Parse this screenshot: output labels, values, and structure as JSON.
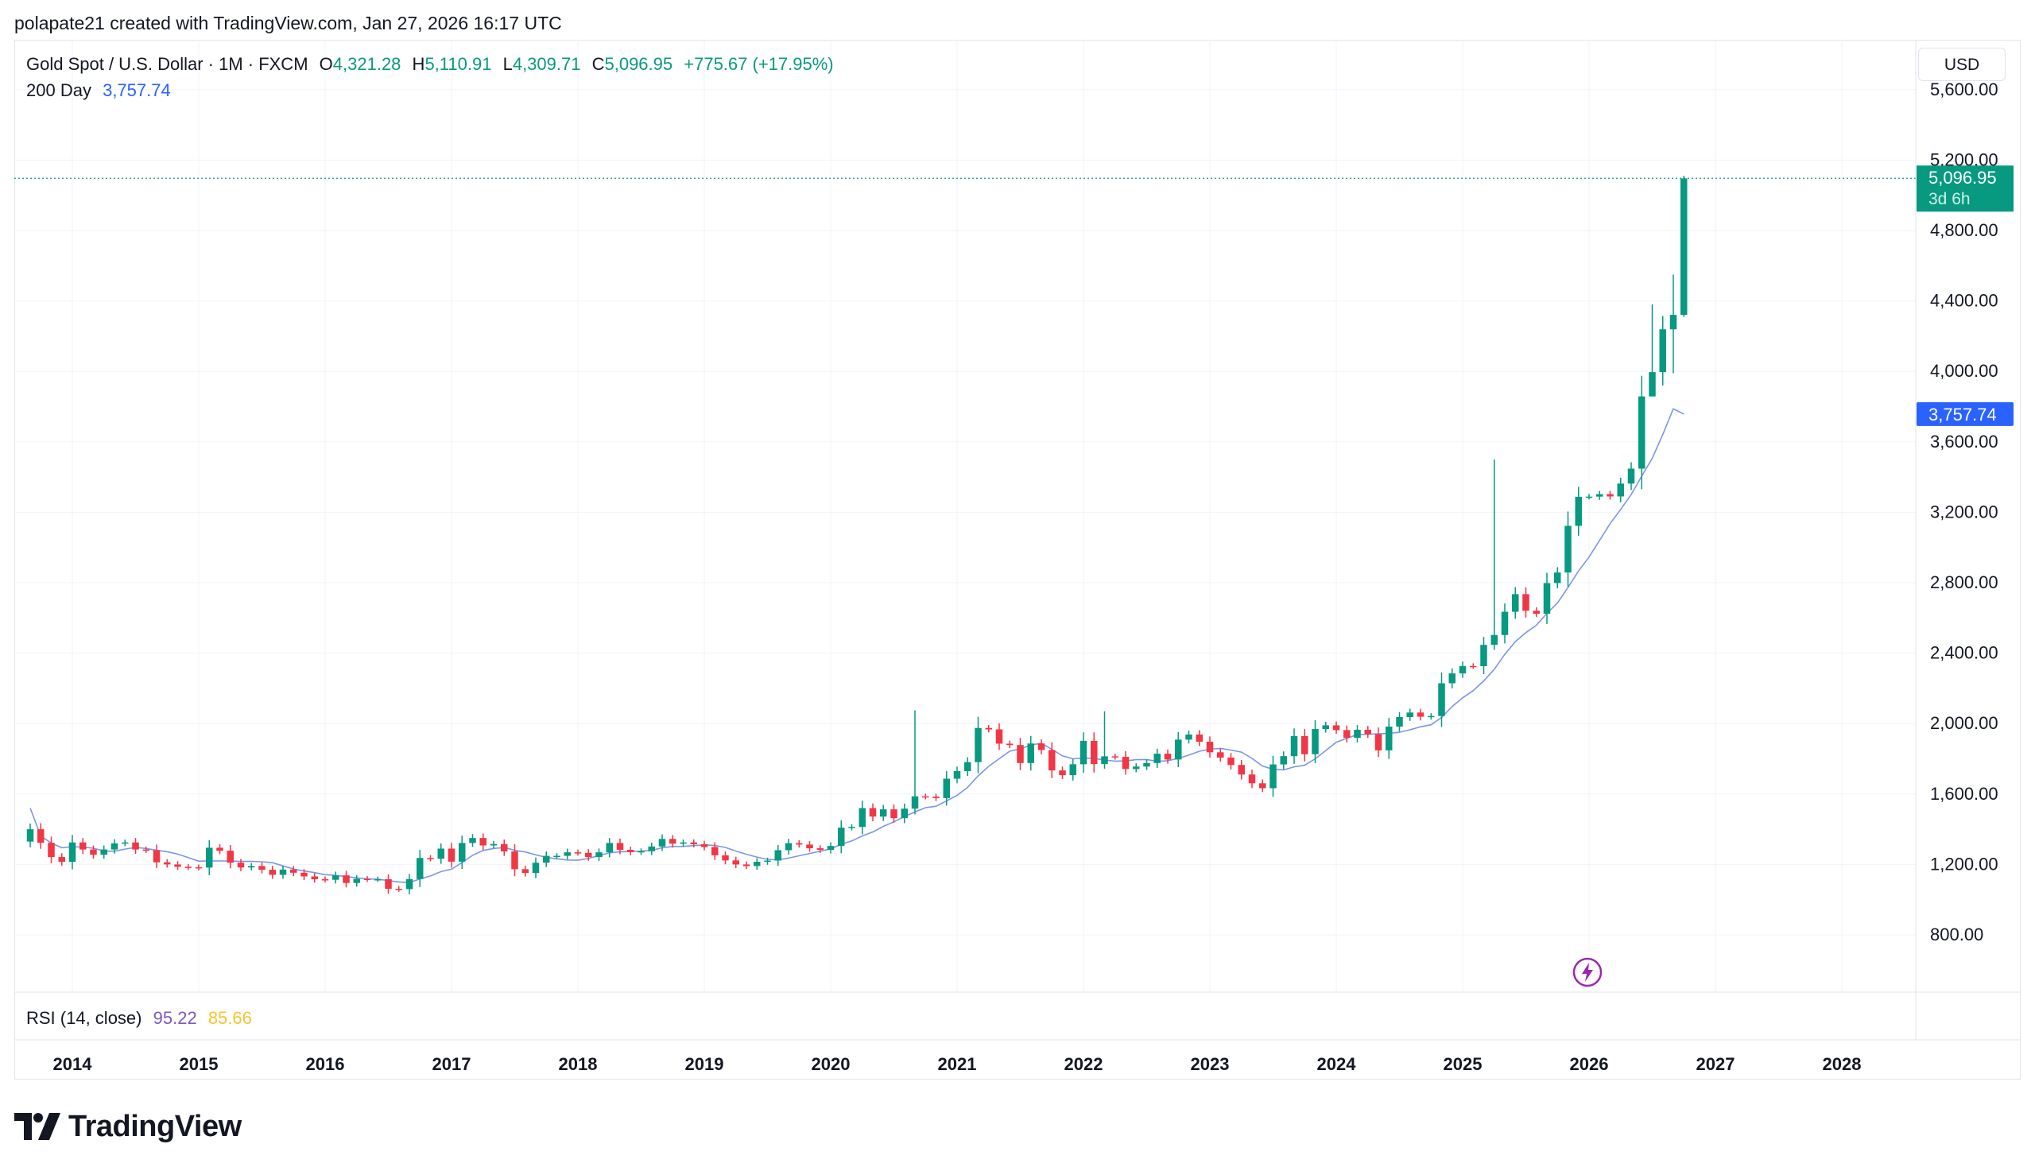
{
  "caption": "polapate21 created with TradingView.com, Jan 27, 2026 16:17 UTC",
  "legend": {
    "title": "Gold Spot / U.S. Dollar · 1M · FXCM",
    "o_key": "O",
    "o_val": "4,321.28",
    "h_key": "H",
    "h_val": "5,110.91",
    "l_key": "L",
    "l_val": "4,309.71",
    "c_key": "C",
    "c_val": "5,096.95",
    "change": "+775.67 (+17.95%)",
    "ma_label": "200 Day",
    "ma_val": "3,757.74"
  },
  "rsi": {
    "label": "RSI (14, close)",
    "value": "95.22",
    "ma_value": "85.66"
  },
  "currency_button": "USD",
  "price_badge": {
    "price": "5,096.95",
    "countdown": "3d 6h"
  },
  "ma_badge": "3,757.74",
  "logo_text": "TradingView",
  "colors": {
    "up": "#089981",
    "down": "#f23645",
    "ma": "#2962ff",
    "ma_line": "#7b96e8",
    "grid": "#f0f3fa"
  },
  "icons": [
    "tradingview-logo-icon",
    "lightning-icon"
  ],
  "chart_data": {
    "type": "candlestick",
    "symbol": "Gold Spot / U.S. Dollar",
    "interval": "1M",
    "y_ticks": [
      "800.00",
      "1,200.00",
      "1,600.00",
      "2,000.00",
      "2,400.00",
      "2,800.00",
      "3,200.00",
      "3,600.00",
      "4,000.00",
      "4,400.00",
      "4,800.00",
      "5,200.00",
      "5,600.00"
    ],
    "y_tick_values": [
      800,
      1200,
      1600,
      2000,
      2400,
      2800,
      3200,
      3600,
      4000,
      4400,
      4800,
      5200,
      5600
    ],
    "x_ticks": [
      "2014",
      "2015",
      "2016",
      "2017",
      "2018",
      "2019",
      "2020",
      "2021",
      "2022",
      "2023",
      "2024",
      "2025",
      "2026",
      "2027",
      "2028"
    ],
    "x_tick_years": [
      2014,
      2015,
      2016,
      2017,
      2018,
      2019,
      2020,
      2021,
      2022,
      2023,
      2024,
      2025,
      2026,
      2027,
      2028
    ],
    "last_price": 5096.95,
    "ma_last": 3757.74,
    "ma_period": "200 Day",
    "closes": [
      1400,
      1323,
      1242,
      1215,
      1325,
      1285,
      1255,
      1285,
      1320,
      1325,
      1285,
      1281,
      1212,
      1200,
      1187,
      1184,
      1182,
      1295,
      1278,
      1210,
      1183,
      1191,
      1170,
      1141,
      1171,
      1153,
      1132,
      1116,
      1113,
      1138,
      1095,
      1118,
      1116,
      1116,
      1062,
      1060,
      1117,
      1237,
      1233,
      1290,
      1216,
      1322,
      1350,
      1308,
      1316,
      1274,
      1173,
      1152,
      1210,
      1249,
      1249,
      1269,
      1266,
      1242,
      1269,
      1322,
      1283,
      1270,
      1275,
      1302,
      1345,
      1318,
      1325,
      1315,
      1299,
      1252,
      1223,
      1200,
      1191,
      1215,
      1222,
      1281,
      1321,
      1313,
      1292,
      1283,
      1305,
      1409,
      1413,
      1520,
      1472,
      1513,
      1463,
      1517,
      1587,
      1585,
      1577,
      1687,
      1730,
      1781,
      1975,
      1967,
      1886,
      1878,
      1776,
      1887,
      1850,
      1734,
      1707,
      1769,
      1902,
      1770,
      1814,
      1811,
      1742,
      1756,
      1776,
      1829,
      1796,
      1909,
      1938,
      1897,
      1837,
      1807,
      1765,
      1711,
      1661,
      1633,
      1768,
      1815,
      1929,
      1826,
      1969,
      1990,
      1963,
      1919,
      1965,
      1940,
      1848,
      1983,
      2037,
      2063,
      2039,
      2043,
      2229,
      2285,
      2327,
      2326,
      2447,
      2503,
      2635,
      2735,
      2641,
      2624,
      2798,
      2858,
      3123,
      3288,
      3289,
      3303,
      3290,
      3363,
      3448,
      3858,
      3996,
      4239,
      4321,
      5096
    ],
    "opens_note": "open of each month equals previous close",
    "notable_highs": {
      "2020-08": 2075,
      "2022-03": 2070,
      "2025-04": 3500,
      "2025-10": 4381,
      "2025-12": 4550,
      "2026-01": 5110.91
    }
  }
}
